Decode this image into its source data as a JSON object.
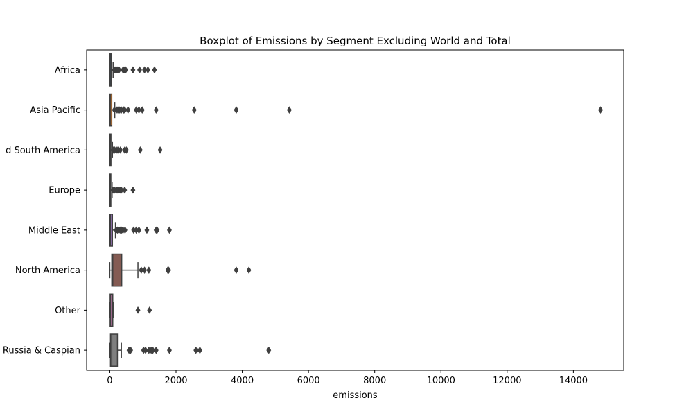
{
  "chart_data": {
    "type": "boxplot",
    "title": "Boxplot of Emissions by Segment Excluding World and Total",
    "xlabel": "emissions",
    "ylabel": "",
    "xlim": [
      -700,
      15520
    ],
    "xticks": [
      0,
      2000,
      4000,
      6000,
      8000,
      10000,
      12000,
      14000
    ],
    "xtick_labels": [
      "0",
      "2000",
      "4000",
      "6000",
      "8000",
      "10000",
      "12000",
      "14000"
    ],
    "categories": [
      "Africa",
      "Asia Pacific",
      "d South America",
      "Europe",
      "Middle East",
      "North America",
      "Other",
      "Russia & Caspian"
    ],
    "category_labels": [
      "Africa",
      "Asia Pacific",
      "d South America",
      "Europe",
      "Middle East",
      "North America",
      "Other",
      "Russia & Caspian"
    ],
    "boxes": [
      {
        "category": "Africa",
        "color": "#3274a1",
        "whislo": 0,
        "q1": 2,
        "median": 10,
        "q3": 40,
        "whishi": 100,
        "outliers": [
          130,
          160,
          200,
          240,
          280,
          400,
          430,
          460,
          480,
          700,
          900,
          1050,
          1150,
          1350
        ]
      },
      {
        "category": "Asia Pacific",
        "color": "#e1812c",
        "whislo": 0,
        "q1": 3,
        "median": 15,
        "q3": 60,
        "whishi": 150,
        "outliers": [
          140,
          220,
          260,
          300,
          350,
          420,
          450,
          550,
          800,
          880,
          980,
          1400,
          2550,
          3820,
          5420,
          14820
        ]
      },
      {
        "category": "d South America",
        "color": "#3a923a",
        "whislo": 0,
        "q1": 2,
        "median": 8,
        "q3": 35,
        "whishi": 80,
        "outliers": [
          100,
          150,
          220,
          260,
          320,
          450,
          500,
          920,
          1520
        ]
      },
      {
        "category": "Europe",
        "color": "#c03d3e",
        "whislo": 0,
        "q1": 1,
        "median": 5,
        "q3": 30,
        "whishi": 70,
        "outliers": [
          100,
          150,
          200,
          240,
          280,
          320,
          350,
          450,
          700
        ]
      },
      {
        "category": "Middle East",
        "color": "#9372b2",
        "whislo": 0,
        "q1": 5,
        "median": 20,
        "q3": 80,
        "whishi": 170,
        "outliers": [
          190,
          230,
          270,
          310,
          360,
          400,
          460,
          720,
          800,
          880,
          1120,
          1400,
          1430,
          1800
        ]
      },
      {
        "category": "North America",
        "color": "#845b53",
        "whislo": 0,
        "q1": 60,
        "median": 90,
        "q3": 360,
        "whishi": 850,
        "outliers": [
          950,
          1050,
          1180,
          1750,
          1780,
          3820,
          4200
        ]
      },
      {
        "category": "Other",
        "color": "#d684bd",
        "whislo": 0,
        "q1": 10,
        "median": 25,
        "q3": 90,
        "whishi": 100,
        "outliers": [
          850,
          1200
        ]
      },
      {
        "category": "Russia & Caspian",
        "color": "#7f7f7f",
        "whislo": 0,
        "q1": 20,
        "median": 60,
        "q3": 230,
        "whishi": 350,
        "outliers": [
          580,
          630,
          1020,
          1080,
          1180,
          1250,
          1300,
          1400,
          1800,
          2600,
          2720,
          4800
        ]
      }
    ]
  }
}
